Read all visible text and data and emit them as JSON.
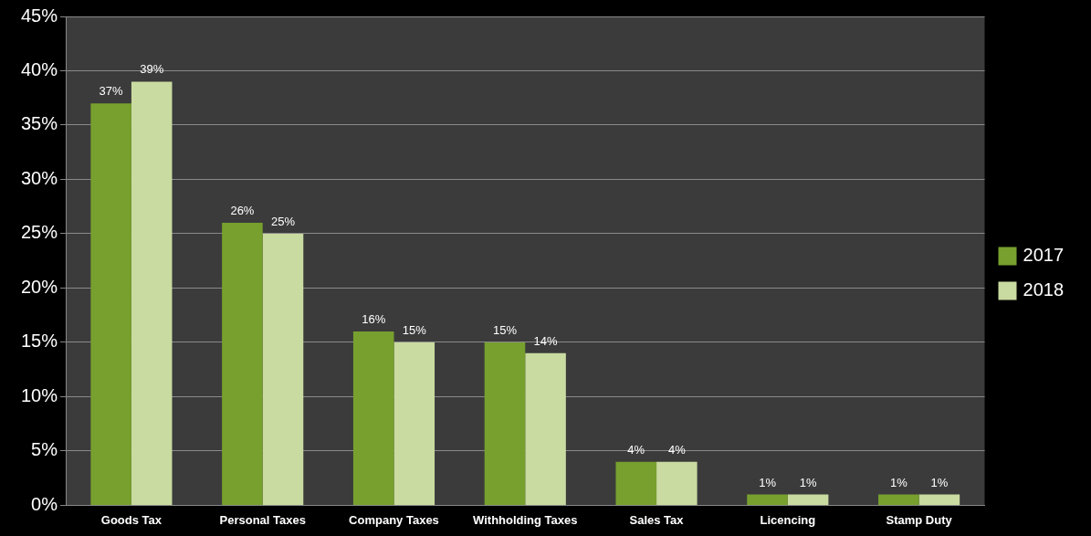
{
  "chart_data": {
    "type": "bar",
    "categories": [
      "Goods Tax",
      "Personal Taxes",
      "Company Taxes",
      "Withholding Taxes",
      "Sales Tax",
      "Licencing",
      "Stamp Duty"
    ],
    "series": [
      {
        "name": "2017",
        "color": "#77a02e",
        "values": [
          37,
          26,
          16,
          15,
          4,
          1,
          1
        ]
      },
      {
        "name": "2018",
        "color": "#c9dba0",
        "values": [
          39,
          25,
          15,
          14,
          4,
          1,
          1
        ]
      }
    ],
    "ylim": [
      0,
      45
    ],
    "yticks": [
      {
        "value": 0,
        "label": "0%"
      },
      {
        "value": 5,
        "label": "5%"
      },
      {
        "value": 10,
        "label": "10%"
      },
      {
        "value": 15,
        "label": "15%"
      },
      {
        "value": 20,
        "label": "20%"
      },
      {
        "value": 25,
        "label": "25%"
      },
      {
        "value": 30,
        "label": "30%"
      },
      {
        "value": 35,
        "label": "35%"
      },
      {
        "value": 40,
        "label": "40%"
      },
      {
        "value": 45,
        "label": "45%"
      }
    ],
    "value_labels": [
      [
        "37%",
        "26%",
        "16%",
        "15%",
        "4%",
        "1%",
        "1%"
      ],
      [
        "39%",
        "25%",
        "15%",
        "14%",
        "4%",
        "1%",
        "1%"
      ]
    ],
    "grid": "y",
    "legend": "right"
  }
}
